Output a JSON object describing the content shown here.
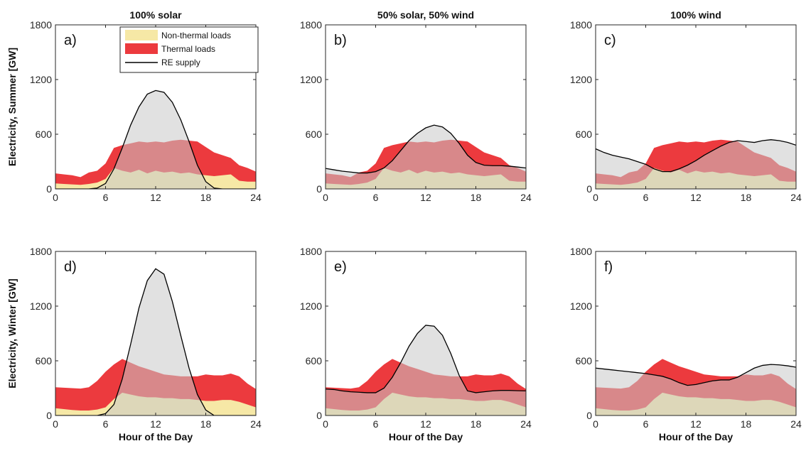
{
  "colors": {
    "non_thermal": "#f6e8a6",
    "thermal": "#ec3a3e",
    "re_fill": "#c8c8c8",
    "re_line": "#000000"
  },
  "chart_data": [
    {
      "type": "area",
      "panel_label": "a)",
      "title": "100% solar",
      "xlabel": "",
      "ylabel": "Electricity, Summer [GW]",
      "xlim": [
        0,
        24
      ],
      "ylim": [
        0,
        1800
      ],
      "xticks": [
        0,
        6,
        12,
        18,
        24
      ],
      "yticks": [
        0,
        600,
        1200,
        1800
      ],
      "legend": {
        "entries": [
          "Non-thermal loads",
          "Thermal loads",
          "RE supply"
        ],
        "placement": "top-right"
      },
      "x": [
        0,
        1,
        2,
        3,
        4,
        5,
        6,
        7,
        8,
        9,
        10,
        11,
        12,
        13,
        14,
        15,
        16,
        17,
        18,
        19,
        20,
        21,
        22,
        23,
        24
      ],
      "series": [
        {
          "name": "Non-thermal loads",
          "values": [
            60,
            55,
            50,
            45,
            55,
            70,
            110,
            230,
            200,
            180,
            210,
            170,
            200,
            180,
            190,
            170,
            180,
            160,
            150,
            140,
            150,
            160,
            90,
            80,
            80
          ]
        },
        {
          "name": "Thermal loads",
          "values": [
            170,
            160,
            150,
            130,
            180,
            200,
            280,
            450,
            480,
            500,
            520,
            510,
            520,
            510,
            530,
            540,
            530,
            520,
            460,
            400,
            370,
            340,
            260,
            230,
            190
          ]
        },
        {
          "name": "RE supply",
          "values": [
            0,
            0,
            0,
            0,
            0,
            10,
            60,
            220,
            450,
            700,
            900,
            1040,
            1080,
            1060,
            950,
            760,
            520,
            260,
            80,
            10,
            0,
            0,
            0,
            0,
            0
          ]
        }
      ]
    },
    {
      "type": "area",
      "panel_label": "b)",
      "title": "50% solar, 50% wind",
      "xlabel": "",
      "ylabel": "",
      "xlim": [
        0,
        24
      ],
      "ylim": [
        0,
        1800
      ],
      "xticks": [
        0,
        6,
        12,
        18,
        24
      ],
      "yticks": [
        0,
        600,
        1200,
        1800
      ],
      "x": [
        0,
        1,
        2,
        3,
        4,
        5,
        6,
        7,
        8,
        9,
        10,
        11,
        12,
        13,
        14,
        15,
        16,
        17,
        18,
        19,
        20,
        21,
        22,
        23,
        24
      ],
      "series": [
        {
          "name": "Non-thermal loads",
          "values": [
            60,
            55,
            50,
            45,
            55,
            70,
            110,
            230,
            200,
            180,
            210,
            170,
            200,
            180,
            190,
            170,
            180,
            160,
            150,
            140,
            150,
            160,
            90,
            80,
            80
          ]
        },
        {
          "name": "Thermal loads",
          "values": [
            170,
            160,
            150,
            130,
            180,
            200,
            280,
            450,
            480,
            500,
            520,
            510,
            520,
            510,
            530,
            540,
            530,
            520,
            460,
            400,
            370,
            340,
            260,
            230,
            190
          ]
        },
        {
          "name": "RE supply",
          "values": [
            225,
            210,
            195,
            185,
            175,
            175,
            190,
            230,
            310,
            420,
            530,
            610,
            670,
            700,
            680,
            610,
            500,
            370,
            290,
            260,
            255,
            255,
            250,
            240,
            230
          ]
        }
      ]
    },
    {
      "type": "area",
      "panel_label": "c)",
      "title": "100% wind",
      "xlabel": "",
      "ylabel": "",
      "xlim": [
        0,
        24
      ],
      "ylim": [
        0,
        1800
      ],
      "xticks": [
        0,
        6,
        12,
        18,
        24
      ],
      "yticks": [
        0,
        600,
        1200,
        1800
      ],
      "x": [
        0,
        1,
        2,
        3,
        4,
        5,
        6,
        7,
        8,
        9,
        10,
        11,
        12,
        13,
        14,
        15,
        16,
        17,
        18,
        19,
        20,
        21,
        22,
        23,
        24
      ],
      "series": [
        {
          "name": "Non-thermal loads",
          "values": [
            60,
            55,
            50,
            45,
            55,
            70,
            110,
            230,
            200,
            180,
            210,
            170,
            200,
            180,
            190,
            170,
            180,
            160,
            150,
            140,
            150,
            160,
            90,
            80,
            80
          ]
        },
        {
          "name": "Thermal loads",
          "values": [
            170,
            160,
            150,
            130,
            180,
            200,
            280,
            450,
            480,
            500,
            520,
            510,
            520,
            510,
            530,
            540,
            530,
            520,
            460,
            400,
            370,
            340,
            260,
            230,
            190
          ]
        },
        {
          "name": "RE supply",
          "values": [
            440,
            400,
            370,
            350,
            330,
            300,
            270,
            220,
            190,
            190,
            220,
            260,
            310,
            370,
            420,
            470,
            510,
            530,
            520,
            510,
            530,
            540,
            530,
            510,
            480
          ]
        }
      ]
    },
    {
      "type": "area",
      "panel_label": "d)",
      "title": "",
      "xlabel": "Hour of the Day",
      "ylabel": "Electricity, Winter [GW]",
      "xlim": [
        0,
        24
      ],
      "ylim": [
        0,
        1800
      ],
      "xticks": [
        0,
        6,
        12,
        18,
        24
      ],
      "yticks": [
        0,
        600,
        1200,
        1800
      ],
      "x": [
        0,
        1,
        2,
        3,
        4,
        5,
        6,
        7,
        8,
        9,
        10,
        11,
        12,
        13,
        14,
        15,
        16,
        17,
        18,
        19,
        20,
        21,
        22,
        23,
        24
      ],
      "series": [
        {
          "name": "Non-thermal loads",
          "values": [
            80,
            70,
            60,
            55,
            55,
            65,
            90,
            180,
            250,
            230,
            210,
            200,
            200,
            190,
            190,
            180,
            180,
            170,
            160,
            160,
            170,
            170,
            150,
            120,
            90
          ]
        },
        {
          "name": "Thermal loads",
          "values": [
            310,
            305,
            300,
            295,
            310,
            380,
            480,
            560,
            620,
            580,
            540,
            510,
            480,
            450,
            440,
            430,
            430,
            430,
            450,
            440,
            440,
            460,
            430,
            350,
            290
          ]
        },
        {
          "name": "RE supply",
          "values": [
            0,
            0,
            0,
            0,
            0,
            0,
            20,
            120,
            400,
            780,
            1180,
            1480,
            1610,
            1550,
            1250,
            880,
            520,
            230,
            60,
            0,
            0,
            0,
            0,
            0,
            0
          ]
        }
      ]
    },
    {
      "type": "area",
      "panel_label": "e)",
      "title": "",
      "xlabel": "Hour of the Day",
      "ylabel": "",
      "xlim": [
        0,
        24
      ],
      "ylim": [
        0,
        1800
      ],
      "xticks": [
        0,
        6,
        12,
        18,
        24
      ],
      "yticks": [
        0,
        600,
        1200,
        1800
      ],
      "x": [
        0,
        1,
        2,
        3,
        4,
        5,
        6,
        7,
        8,
        9,
        10,
        11,
        12,
        13,
        14,
        15,
        16,
        17,
        18,
        19,
        20,
        21,
        22,
        23,
        24
      ],
      "series": [
        {
          "name": "Non-thermal loads",
          "values": [
            80,
            70,
            60,
            55,
            55,
            65,
            90,
            180,
            250,
            230,
            210,
            200,
            200,
            190,
            190,
            180,
            180,
            170,
            160,
            160,
            170,
            170,
            150,
            120,
            90
          ]
        },
        {
          "name": "Thermal loads",
          "values": [
            310,
            305,
            300,
            295,
            310,
            380,
            480,
            560,
            620,
            580,
            540,
            510,
            480,
            450,
            440,
            430,
            430,
            430,
            450,
            440,
            440,
            460,
            430,
            350,
            290
          ]
        },
        {
          "name": "RE supply",
          "values": [
            290,
            285,
            270,
            260,
            255,
            250,
            250,
            300,
            420,
            580,
            760,
            900,
            990,
            980,
            880,
            680,
            440,
            270,
            250,
            260,
            270,
            275,
            275,
            272,
            270
          ]
        }
      ]
    },
    {
      "type": "area",
      "panel_label": "f)",
      "title": "",
      "xlabel": "Hour of the Day",
      "ylabel": "",
      "xlim": [
        0,
        24
      ],
      "ylim": [
        0,
        1800
      ],
      "xticks": [
        0,
        6,
        12,
        18,
        24
      ],
      "yticks": [
        0,
        600,
        1200,
        1800
      ],
      "x": [
        0,
        1,
        2,
        3,
        4,
        5,
        6,
        7,
        8,
        9,
        10,
        11,
        12,
        13,
        14,
        15,
        16,
        17,
        18,
        19,
        20,
        21,
        22,
        23,
        24
      ],
      "series": [
        {
          "name": "Non-thermal loads",
          "values": [
            80,
            70,
            60,
            55,
            55,
            65,
            90,
            180,
            250,
            230,
            210,
            200,
            200,
            190,
            190,
            180,
            180,
            170,
            160,
            160,
            170,
            170,
            150,
            120,
            90
          ]
        },
        {
          "name": "Thermal loads",
          "values": [
            310,
            305,
            300,
            295,
            310,
            380,
            480,
            560,
            620,
            580,
            540,
            510,
            480,
            450,
            440,
            430,
            430,
            430,
            450,
            440,
            440,
            460,
            430,
            350,
            290
          ]
        },
        {
          "name": "RE supply",
          "values": [
            520,
            510,
            500,
            490,
            480,
            470,
            460,
            445,
            430,
            400,
            360,
            330,
            340,
            360,
            380,
            390,
            390,
            420,
            470,
            520,
            550,
            560,
            555,
            545,
            530
          ]
        }
      ]
    }
  ]
}
